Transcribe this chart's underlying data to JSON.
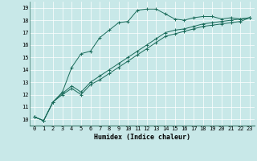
{
  "xlabel": "Humidex (Indice chaleur)",
  "xlim": [
    -0.5,
    23.5
  ],
  "ylim": [
    9.5,
    19.5
  ],
  "xticks": [
    0,
    1,
    2,
    3,
    4,
    5,
    6,
    7,
    8,
    9,
    10,
    11,
    12,
    13,
    14,
    15,
    16,
    17,
    18,
    19,
    20,
    21,
    22,
    23
  ],
  "yticks": [
    10,
    11,
    12,
    13,
    14,
    15,
    16,
    17,
    18,
    19
  ],
  "bg_color": "#c8e8e8",
  "line_color": "#1a6b5a",
  "grid_color": "#ffffff",
  "series": [
    [
      10.2,
      9.9,
      11.4,
      12.2,
      14.2,
      15.3,
      15.5,
      16.6,
      17.2,
      17.8,
      17.9,
      18.8,
      18.9,
      18.9,
      18.5,
      18.1,
      18.0,
      18.2,
      18.3,
      18.3,
      18.1,
      18.2,
      18.1,
      18.2
    ],
    [
      10.2,
      9.9,
      11.4,
      12.1,
      12.7,
      12.2,
      13.0,
      13.5,
      14.0,
      14.5,
      15.0,
      15.5,
      16.0,
      16.5,
      17.0,
      17.2,
      17.3,
      17.5,
      17.7,
      17.8,
      17.9,
      18.0,
      18.1,
      18.2
    ],
    [
      10.2,
      9.9,
      11.4,
      12.0,
      12.5,
      12.0,
      12.8,
      13.2,
      13.7,
      14.2,
      14.7,
      15.2,
      15.7,
      16.2,
      16.7,
      16.9,
      17.1,
      17.3,
      17.5,
      17.6,
      17.7,
      17.8,
      17.9,
      18.2
    ]
  ],
  "tick_fontsize": 5.0,
  "xlabel_fontsize": 6.0
}
